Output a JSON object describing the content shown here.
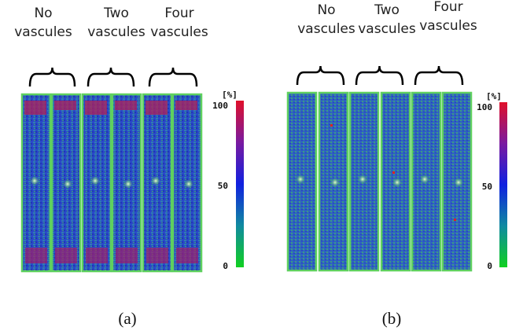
{
  "panels": [
    {
      "groups": [
        [
          "No",
          "vascules"
        ],
        [
          "Two",
          "vascules"
        ],
        [
          "Four",
          "vascules"
        ]
      ],
      "colorbar": {
        "unit": "[%]",
        "ticks": [
          "100",
          "50",
          "0"
        ]
      },
      "caption": "(a)"
    },
    {
      "groups": [
        [
          "No",
          "vascules"
        ],
        [
          "Two",
          "vascules"
        ],
        [
          "Four",
          "vascules"
        ]
      ],
      "colorbar": {
        "unit": "[%]",
        "ticks": [
          "100",
          "50",
          "0"
        ]
      },
      "caption": "(b)"
    }
  ]
}
